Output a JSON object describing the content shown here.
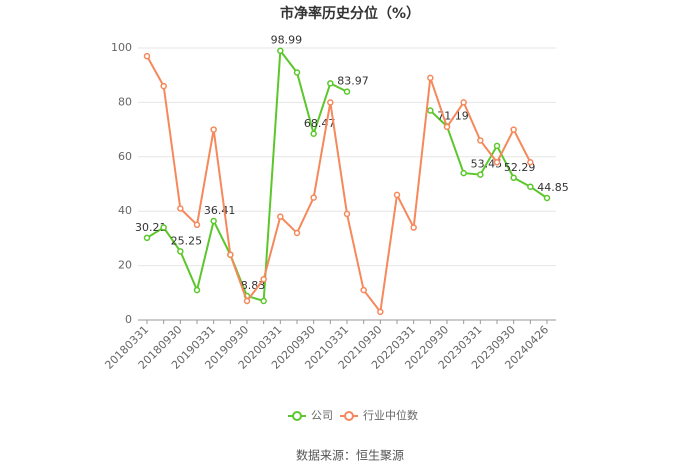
{
  "chart_data": {
    "type": "line",
    "title": "市净率历史分位（%）",
    "categories": [
      "20180331",
      null,
      "20180930",
      null,
      "20190331",
      null,
      "20190930",
      null,
      "20200331",
      null,
      "20200930",
      null,
      "20210331",
      null,
      "20210930",
      null,
      "20220331",
      null,
      "20220930",
      null,
      "20230331",
      null,
      "20230930",
      null,
      "20240426"
    ],
    "series": [
      {
        "name": "公司",
        "color": "#5cc72c",
        "show_labels": true,
        "values": [
          30.21,
          34,
          25.25,
          11,
          36.41,
          24,
          8.83,
          7,
          98.99,
          91,
          68.47,
          87,
          83.97,
          null,
          null,
          null,
          null,
          77,
          71.19,
          54,
          53.45,
          64,
          52.29,
          49,
          44.85
        ]
      },
      {
        "name": "行业中位数",
        "color": "#f5895b",
        "show_labels": false,
        "values": [
          97,
          86,
          41,
          35,
          70,
          24,
          7,
          15,
          38,
          32,
          45,
          80,
          39,
          11,
          3,
          46,
          34,
          89,
          71,
          80,
          66,
          58,
          70,
          58,
          null
        ]
      }
    ],
    "label_every": 2,
    "ylim": [
      0,
      100
    ],
    "yticks": [
      0,
      20,
      40,
      60,
      80,
      100
    ],
    "grid": true,
    "legend": "bottom",
    "source": "数据来源：恒生聚源"
  }
}
